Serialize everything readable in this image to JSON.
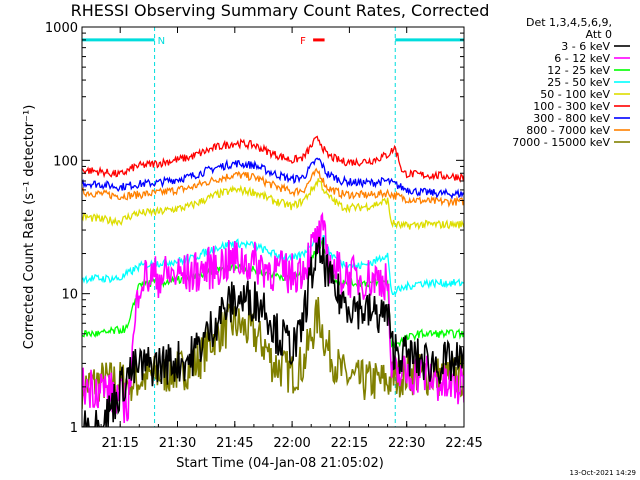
{
  "chart_data": {
    "type": "line",
    "title": "RHESSI Observing Summary Count Rates, Corrected",
    "xlabel": "Start Time (04-Jan-08 21:05:02)",
    "ylabel": "Corrected Count Rate (s⁻¹ detector⁻¹)",
    "ylog": true,
    "ylim": [
      1,
      1000
    ],
    "xlim_minutes": [
      0,
      100
    ],
    "xticks": [
      {
        "t": 10,
        "label": "21:15"
      },
      {
        "t": 25,
        "label": "21:30"
      },
      {
        "t": 40,
        "label": "21:45"
      },
      {
        "t": 55,
        "label": "22:00"
      },
      {
        "t": 70,
        "label": "22:15"
      },
      {
        "t": 85,
        "label": "22:30"
      },
      {
        "t": 100,
        "label": "22:45"
      }
    ],
    "yticks": [
      {
        "v": 1,
        "label": "1"
      },
      {
        "v": 10,
        "label": "10"
      },
      {
        "v": 100,
        "label": "100"
      },
      {
        "v": 1000,
        "label": "1000"
      }
    ],
    "legend_header": [
      "Det 1,3,4,5,6,9,",
      "Att 0"
    ],
    "series": [
      {
        "name": "3 - 6 keV",
        "color": "#000000",
        "points": [
          [
            0,
            1.0
          ],
          [
            5,
            1.0
          ],
          [
            12,
            2.5
          ],
          [
            15,
            2.8
          ],
          [
            22,
            3.0
          ],
          [
            28,
            3.2
          ],
          [
            33,
            5
          ],
          [
            36,
            7
          ],
          [
            40,
            9
          ],
          [
            45,
            9
          ],
          [
            48,
            8
          ],
          [
            51,
            5
          ],
          [
            55,
            4
          ],
          [
            57,
            4.5
          ],
          [
            59,
            10
          ],
          [
            61,
            18
          ],
          [
            63,
            19
          ],
          [
            65,
            12
          ],
          [
            68,
            9
          ],
          [
            72,
            8
          ],
          [
            76,
            7
          ],
          [
            80,
            7
          ],
          [
            81,
            4
          ],
          [
            84,
            3.5
          ],
          [
            88,
            3.2
          ],
          [
            92,
            3.0
          ],
          [
            96,
            3.0
          ],
          [
            100,
            3.0
          ]
        ]
      },
      {
        "name": "6 - 12 keV",
        "color": "#ff00ff",
        "points": [
          [
            0,
            2.0
          ],
          [
            5,
            2.0
          ],
          [
            12,
            1.5
          ],
          [
            15,
            13
          ],
          [
            20,
            13.5
          ],
          [
            28,
            14
          ],
          [
            35,
            16
          ],
          [
            40,
            18
          ],
          [
            45,
            17
          ],
          [
            50,
            15
          ],
          [
            55,
            14
          ],
          [
            58,
            16
          ],
          [
            61,
            24
          ],
          [
            63,
            28
          ],
          [
            65,
            16
          ],
          [
            68,
            14
          ],
          [
            72,
            13
          ],
          [
            76,
            13
          ],
          [
            80,
            13
          ],
          [
            81,
            2.5
          ],
          [
            85,
            2.5
          ],
          [
            90,
            2.5
          ],
          [
            95,
            2.0
          ],
          [
            100,
            2.0
          ]
        ]
      },
      {
        "name": "12 - 25 keV",
        "color": "#00ff00",
        "points": [
          [
            0,
            5
          ],
          [
            5,
            5
          ],
          [
            12,
            5.5
          ],
          [
            15,
            12
          ],
          [
            20,
            12
          ],
          [
            28,
            13
          ],
          [
            35,
            15
          ],
          [
            40,
            16
          ],
          [
            45,
            15
          ],
          [
            50,
            14
          ],
          [
            55,
            13
          ],
          [
            58,
            14
          ],
          [
            61,
            20
          ],
          [
            63,
            24
          ],
          [
            65,
            14
          ],
          [
            68,
            12
          ],
          [
            72,
            12
          ],
          [
            76,
            12
          ],
          [
            80,
            12
          ],
          [
            81,
            4
          ],
          [
            84,
            4.5
          ],
          [
            88,
            5
          ],
          [
            92,
            5
          ],
          [
            96,
            5
          ],
          [
            100,
            5
          ]
        ]
      },
      {
        "name": "25 - 50 keV",
        "color": "#00ffff",
        "points": [
          [
            0,
            13
          ],
          [
            5,
            13
          ],
          [
            10,
            13
          ],
          [
            15,
            16
          ],
          [
            20,
            17
          ],
          [
            28,
            18
          ],
          [
            35,
            22
          ],
          [
            40,
            24
          ],
          [
            45,
            23
          ],
          [
            50,
            20
          ],
          [
            55,
            18
          ],
          [
            58,
            20
          ],
          [
            61,
            26
          ],
          [
            63,
            27
          ],
          [
            65,
            20
          ],
          [
            68,
            17
          ],
          [
            72,
            16
          ],
          [
            76,
            17
          ],
          [
            80,
            20
          ],
          [
            81,
            10
          ],
          [
            84,
            11
          ],
          [
            88,
            12
          ],
          [
            92,
            12
          ],
          [
            96,
            12
          ],
          [
            100,
            12
          ]
        ]
      },
      {
        "name": "50 - 100 keV",
        "color": "#dddd00",
        "points": [
          [
            0,
            38
          ],
          [
            5,
            36
          ],
          [
            10,
            35
          ],
          [
            14,
            40
          ],
          [
            20,
            41
          ],
          [
            28,
            45
          ],
          [
            35,
            55
          ],
          [
            40,
            60
          ],
          [
            45,
            58
          ],
          [
            50,
            50
          ],
          [
            55,
            45
          ],
          [
            58,
            50
          ],
          [
            61,
            65
          ],
          [
            62,
            72
          ],
          [
            64,
            55
          ],
          [
            68,
            45
          ],
          [
            72,
            44
          ],
          [
            76,
            46
          ],
          [
            80,
            50
          ],
          [
            81,
            34
          ],
          [
            84,
            32
          ],
          [
            88,
            33
          ],
          [
            92,
            33
          ],
          [
            96,
            33
          ],
          [
            100,
            33
          ]
        ]
      },
      {
        "name": "100 - 300 keV",
        "color": "#ff0000",
        "points": [
          [
            0,
            85
          ],
          [
            5,
            82
          ],
          [
            10,
            78
          ],
          [
            14,
            90
          ],
          [
            20,
            95
          ],
          [
            28,
            105
          ],
          [
            35,
            125
          ],
          [
            40,
            135
          ],
          [
            45,
            130
          ],
          [
            50,
            112
          ],
          [
            55,
            100
          ],
          [
            58,
            105
          ],
          [
            61,
            140
          ],
          [
            62,
            145
          ],
          [
            64,
            110
          ],
          [
            68,
            98
          ],
          [
            72,
            97
          ],
          [
            76,
            100
          ],
          [
            80,
            110
          ],
          [
            82,
            125
          ],
          [
            84,
            80
          ],
          [
            88,
            78
          ],
          [
            92,
            77
          ],
          [
            96,
            76
          ],
          [
            100,
            75
          ]
        ]
      },
      {
        "name": "300 - 800 keV",
        "color": "#0000ff",
        "points": [
          [
            0,
            68
          ],
          [
            5,
            66
          ],
          [
            10,
            63
          ],
          [
            14,
            66
          ],
          [
            20,
            68
          ],
          [
            28,
            75
          ],
          [
            35,
            88
          ],
          [
            40,
            95
          ],
          [
            45,
            92
          ],
          [
            50,
            80
          ],
          [
            55,
            72
          ],
          [
            58,
            75
          ],
          [
            61,
            98
          ],
          [
            62,
            102
          ],
          [
            64,
            80
          ],
          [
            68,
            70
          ],
          [
            72,
            68
          ],
          [
            76,
            68
          ],
          [
            80,
            70
          ],
          [
            84,
            62
          ],
          [
            88,
            58
          ],
          [
            92,
            57
          ],
          [
            96,
            56
          ],
          [
            100,
            56
          ]
        ]
      },
      {
        "name": "800 - 7000 keV",
        "color": "#ff8000",
        "points": [
          [
            0,
            58
          ],
          [
            5,
            56
          ],
          [
            10,
            54
          ],
          [
            14,
            55
          ],
          [
            20,
            57
          ],
          [
            28,
            62
          ],
          [
            35,
            72
          ],
          [
            40,
            78
          ],
          [
            45,
            75
          ],
          [
            50,
            65
          ],
          [
            55,
            58
          ],
          [
            58,
            60
          ],
          [
            61,
            80
          ],
          [
            62,
            82
          ],
          [
            64,
            63
          ],
          [
            68,
            56
          ],
          [
            72,
            55
          ],
          [
            76,
            55
          ],
          [
            80,
            57
          ],
          [
            84,
            52
          ],
          [
            88,
            50
          ],
          [
            92,
            49
          ],
          [
            96,
            49
          ],
          [
            100,
            49
          ]
        ]
      },
      {
        "name": "7000 - 15000 keV",
        "color": "#808000",
        "points": [
          [
            0,
            2.0
          ],
          [
            5,
            2.2
          ],
          [
            10,
            2.2
          ],
          [
            14,
            2.2
          ],
          [
            20,
            2.5
          ],
          [
            25,
            2.6
          ],
          [
            30,
            3.0
          ],
          [
            35,
            5
          ],
          [
            40,
            6
          ],
          [
            45,
            5
          ],
          [
            48,
            4
          ],
          [
            50,
            3.0
          ],
          [
            55,
            2.5
          ],
          [
            58,
            3.0
          ],
          [
            61,
            6
          ],
          [
            62,
            7
          ],
          [
            64,
            4
          ],
          [
            68,
            2.5
          ],
          [
            72,
            2.2
          ],
          [
            76,
            2.2
          ],
          [
            80,
            2.2
          ],
          [
            84,
            2.5
          ],
          [
            88,
            2.5
          ],
          [
            92,
            2.4
          ],
          [
            96,
            2.4
          ],
          [
            100,
            2.4
          ]
        ]
      }
    ],
    "flags": [
      {
        "label": "N",
        "color": "#00dddd",
        "segments": [
          [
            0,
            19
          ],
          [
            82,
            100
          ]
        ],
        "value": 800
      },
      {
        "label": "F",
        "color": "#ff0000",
        "segments": [
          [
            60.5,
            63.5
          ]
        ],
        "value": 800
      }
    ],
    "vlines": [
      19,
      82,
      100
    ],
    "footer": "13-Oct-2021 14:29"
  }
}
